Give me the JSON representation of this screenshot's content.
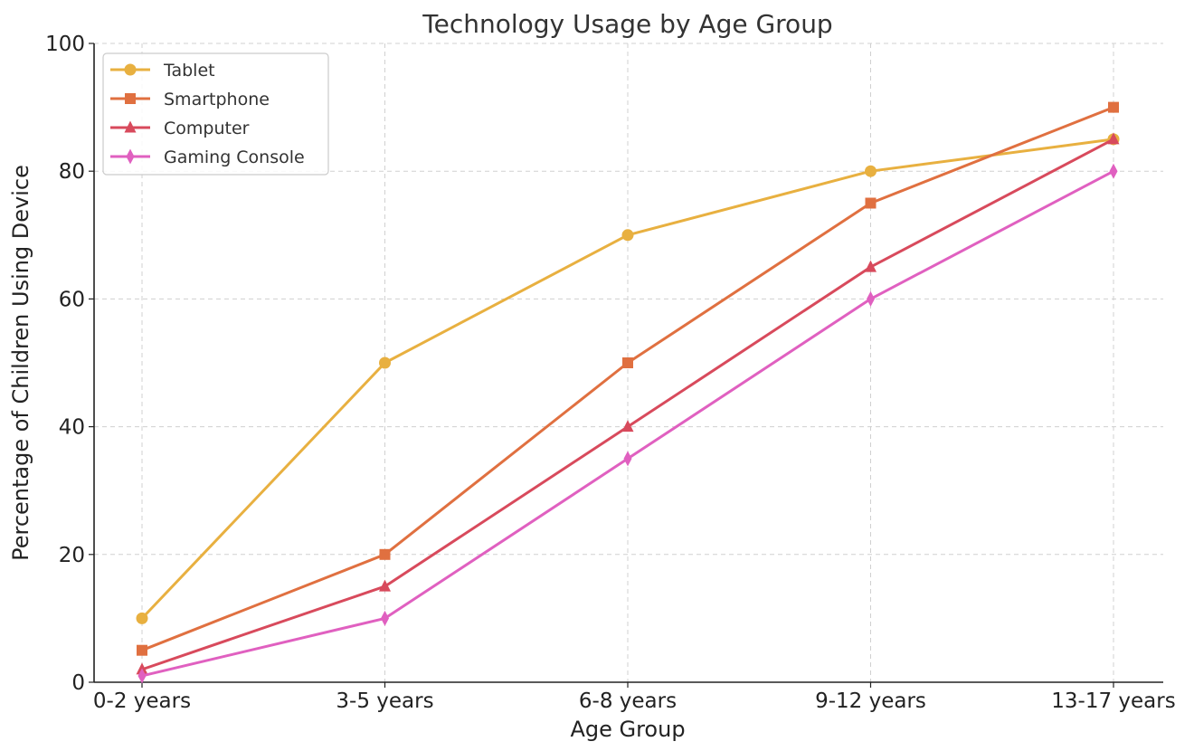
{
  "chart_data": {
    "type": "line",
    "title": "Technology Usage by Age Group",
    "xlabel": "Age Group",
    "ylabel": "Percentage of Children Using Device",
    "categories": [
      "0-2 years",
      "3-5 years",
      "6-8 years",
      "9-12 years",
      "13-17 years"
    ],
    "ylim": [
      0,
      100
    ],
    "yticks": [
      0,
      20,
      40,
      60,
      80,
      100
    ],
    "grid": true,
    "legend_position": "top-left",
    "series": [
      {
        "name": "Tablet",
        "values": [
          10,
          50,
          70,
          80,
          85
        ],
        "color": "#E8B040",
        "marker": "circle"
      },
      {
        "name": "Smartphone",
        "values": [
          5,
          20,
          50,
          75,
          90
        ],
        "color": "#E07040",
        "marker": "square"
      },
      {
        "name": "Computer",
        "values": [
          2,
          15,
          40,
          65,
          85
        ],
        "color": "#D84A5C",
        "marker": "triangle"
      },
      {
        "name": "Gaming Console",
        "values": [
          1,
          10,
          35,
          60,
          80
        ],
        "color": "#E060C0",
        "marker": "diamond"
      }
    ]
  }
}
